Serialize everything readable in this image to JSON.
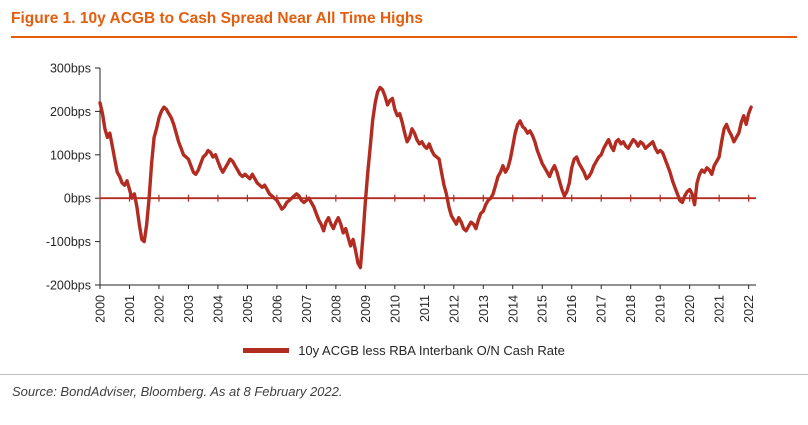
{
  "header": {
    "title": "Figure 1. 10y ACGB to Cash Spread Near All Time Highs"
  },
  "colors": {
    "title": "#E45E0D",
    "title_rule": "#E45E0D",
    "series": "#B32C22",
    "zero_line": "#B32C22",
    "axis": "#262626",
    "divider": "#BFBFBF",
    "source_text": "#3F3F3F"
  },
  "legend": {
    "label": "10y ACGB less RBA Interbank O/N Cash Rate"
  },
  "source": {
    "text": "Source: BondAdviser, Bloomberg. As at 8 February 2022."
  },
  "chart_data": {
    "type": "line",
    "title": "Figure 1. 10y ACGB to Cash Spread Near All Time Highs",
    "xlabel": "",
    "ylabel": "",
    "grid": false,
    "legend_position": "bottom",
    "ylim": [
      -200,
      300
    ],
    "yticks": [
      300,
      200,
      100,
      0,
      -100,
      -200
    ],
    "ytick_labels": [
      "300bps",
      "200bps",
      "100bps",
      "0bps",
      "-100bps",
      "-200bps"
    ],
    "x_range": [
      2000,
      2022.25
    ],
    "x_start_year": 2000,
    "x_step_months": 1,
    "xtick_labels": [
      "2000",
      "2001",
      "2002",
      "2003",
      "2004",
      "2005",
      "2006",
      "2007",
      "2008",
      "2009",
      "2010",
      "2011",
      "2012",
      "2013",
      "2014",
      "2015",
      "2016",
      "2017",
      "2018",
      "2019",
      "2020",
      "2021",
      "2022"
    ],
    "unit": "bps",
    "series": [
      {
        "name": "10y ACGB less RBA Interbank O/N Cash Rate",
        "values": [
          220,
          195,
          160,
          140,
          150,
          120,
          90,
          60,
          50,
          35,
          30,
          40,
          20,
          0,
          10,
          -20,
          -60,
          -95,
          -100,
          -60,
          0,
          80,
          140,
          160,
          185,
          200,
          210,
          205,
          195,
          185,
          170,
          150,
          130,
          115,
          100,
          95,
          90,
          75,
          60,
          55,
          65,
          80,
          95,
          100,
          110,
          105,
          95,
          100,
          85,
          70,
          60,
          70,
          80,
          90,
          85,
          75,
          65,
          55,
          50,
          55,
          50,
          45,
          55,
          45,
          35,
          30,
          25,
          30,
          20,
          10,
          5,
          0,
          -5,
          -15,
          -25,
          -20,
          -10,
          -5,
          0,
          5,
          10,
          5,
          -5,
          -10,
          -5,
          0,
          -10,
          -20,
          -35,
          -50,
          -60,
          -75,
          -55,
          -45,
          -60,
          -70,
          -55,
          -45,
          -60,
          -80,
          -70,
          -90,
          -110,
          -95,
          -120,
          -150,
          -160,
          -90,
          -10,
          60,
          120,
          180,
          220,
          245,
          255,
          250,
          235,
          215,
          225,
          230,
          205,
          190,
          195,
          175,
          150,
          130,
          140,
          160,
          150,
          135,
          125,
          130,
          120,
          115,
          125,
          110,
          100,
          95,
          90,
          60,
          30,
          10,
          -20,
          -40,
          -50,
          -60,
          -45,
          -55,
          -70,
          -75,
          -65,
          -55,
          -60,
          -70,
          -50,
          -35,
          -30,
          -15,
          -5,
          0,
          10,
          30,
          50,
          60,
          75,
          60,
          70,
          90,
          120,
          150,
          170,
          178,
          165,
          160,
          150,
          155,
          145,
          130,
          110,
          95,
          80,
          70,
          60,
          50,
          65,
          75,
          60,
          40,
          20,
          5,
          15,
          35,
          70,
          90,
          95,
          80,
          70,
          60,
          45,
          50,
          60,
          75,
          85,
          95,
          100,
          115,
          125,
          135,
          120,
          110,
          130,
          135,
          125,
          130,
          120,
          115,
          125,
          135,
          130,
          120,
          130,
          125,
          115,
          120,
          125,
          130,
          115,
          105,
          110,
          105,
          90,
          75,
          60,
          40,
          25,
          10,
          -5,
          -10,
          5,
          15,
          20,
          10,
          -15,
          35,
          55,
          65,
          60,
          70,
          65,
          55,
          75,
          85,
          95,
          130,
          160,
          170,
          155,
          145,
          130,
          140,
          150,
          175,
          190,
          170,
          195,
          210
        ]
      }
    ]
  }
}
